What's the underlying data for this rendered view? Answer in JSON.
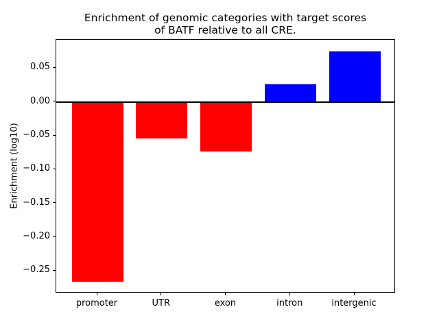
{
  "title": {
    "line1": "Enrichment of genomic categories with target scores",
    "line2": "of BATF relative to all CRE."
  },
  "chart_data": {
    "type": "bar",
    "title": "Enrichment of genomic categories with target scores\nof BATF relative to all CRE.",
    "xlabel": "",
    "ylabel": "Enrichment (log10)",
    "categories": [
      "promoter",
      "UTR",
      "exon",
      "intron",
      "intergenic"
    ],
    "values": [
      -0.266,
      -0.054,
      -0.073,
      0.026,
      0.075
    ],
    "positive_color": "#0000ff",
    "negative_color": "#ff0000",
    "bar_colors": [
      "#ff0000",
      "#ff0000",
      "#ff0000",
      "#0000ff",
      "#0000ff"
    ],
    "yticks": [
      0.05,
      0.0,
      -0.05,
      -0.1,
      -0.15,
      -0.2,
      -0.25
    ],
    "ytick_labels": [
      "0.05",
      "0.00",
      "−0.05",
      "−0.10",
      "−0.15",
      "−0.20",
      "−0.25"
    ],
    "ylim": [
      -0.283,
      0.092
    ],
    "xlim": [
      -0.64,
      4.64
    ],
    "bar_width_fraction": 0.8,
    "zero_line": true,
    "grid": false,
    "legend": null,
    "background_color": "#ffffff",
    "axis_color": "#000000"
  }
}
